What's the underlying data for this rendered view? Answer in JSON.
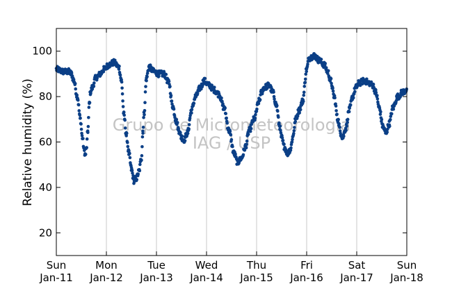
{
  "chart_data": {
    "type": "scatter",
    "title": "",
    "xlabel": "",
    "ylabel": "Relative humidity (%)",
    "ylim": [
      10,
      110
    ],
    "yticks": [
      20,
      40,
      60,
      80,
      100
    ],
    "xlim": [
      "2000-01-11",
      "2000-01-18"
    ],
    "x_tick_labels": [
      {
        "day": "Sun",
        "date": "Jan-11"
      },
      {
        "day": "Mon",
        "date": "Jan-12"
      },
      {
        "day": "Tue",
        "date": "Jan-13"
      },
      {
        "day": "Wed",
        "date": "Jan-14"
      },
      {
        "day": "Thu",
        "date": "Jan-15"
      },
      {
        "day": "Fri",
        "date": "Jan-16"
      },
      {
        "day": "Sat",
        "date": "Jan-17"
      },
      {
        "day": "Sun",
        "date": "Jan-18"
      }
    ],
    "grid": "vertical",
    "marker_color": "#0b3f86",
    "watermark": [
      "Grupo de Micrometeorologia",
      "IAG / USP"
    ],
    "series": [
      {
        "x_unit": "days since Jan-11 00:00",
        "anchors": [
          [
            0.0,
            92
          ],
          [
            0.15,
            91
          ],
          [
            0.25,
            91
          ],
          [
            0.3,
            90
          ],
          [
            0.35,
            87
          ],
          [
            0.42,
            80
          ],
          [
            0.48,
            70
          ],
          [
            0.52,
            62
          ],
          [
            0.56,
            56
          ],
          [
            0.58,
            54
          ],
          [
            0.6,
            57
          ],
          [
            0.63,
            65
          ],
          [
            0.66,
            77
          ],
          [
            0.68,
            82
          ],
          [
            0.72,
            84
          ],
          [
            0.78,
            88
          ],
          [
            0.83,
            89
          ],
          [
            0.88,
            90
          ],
          [
            0.95,
            92
          ],
          [
            1.05,
            94
          ],
          [
            1.15,
            95
          ],
          [
            1.25,
            93
          ],
          [
            1.3,
            87
          ],
          [
            1.35,
            72
          ],
          [
            1.4,
            63
          ],
          [
            1.45,
            55
          ],
          [
            1.5,
            48
          ],
          [
            1.55,
            43
          ],
          [
            1.6,
            44
          ],
          [
            1.65,
            47
          ],
          [
            1.7,
            53
          ],
          [
            1.73,
            65
          ],
          [
            1.75,
            72
          ],
          [
            1.8,
            88
          ],
          [
            1.85,
            93
          ],
          [
            1.95,
            91
          ],
          [
            2.05,
            90
          ],
          [
            2.15,
            90
          ],
          [
            2.25,
            86
          ],
          [
            2.32,
            76
          ],
          [
            2.4,
            69
          ],
          [
            2.45,
            65
          ],
          [
            2.5,
            62
          ],
          [
            2.55,
            61
          ],
          [
            2.62,
            64
          ],
          [
            2.7,
            74
          ],
          [
            2.78,
            80
          ],
          [
            2.88,
            84
          ],
          [
            2.95,
            87
          ],
          [
            3.05,
            85
          ],
          [
            3.15,
            83
          ],
          [
            3.25,
            81
          ],
          [
            3.35,
            75
          ],
          [
            3.45,
            65
          ],
          [
            3.55,
            55
          ],
          [
            3.62,
            51
          ],
          [
            3.7,
            53
          ],
          [
            3.78,
            58
          ],
          [
            3.85,
            65
          ],
          [
            3.95,
            70
          ],
          [
            4.05,
            78
          ],
          [
            4.1,
            82
          ],
          [
            4.15,
            84
          ],
          [
            4.25,
            85
          ],
          [
            4.32,
            82
          ],
          [
            4.4,
            76
          ],
          [
            4.45,
            68
          ],
          [
            4.5,
            62
          ],
          [
            4.55,
            58
          ],
          [
            4.62,
            55
          ],
          [
            4.68,
            57
          ],
          [
            4.72,
            62
          ],
          [
            4.78,
            70
          ],
          [
            4.85,
            74
          ],
          [
            4.92,
            78
          ],
          [
            5.0,
            92
          ],
          [
            5.05,
            97
          ],
          [
            5.15,
            98
          ],
          [
            5.25,
            96
          ],
          [
            5.35,
            94
          ],
          [
            5.42,
            91
          ],
          [
            5.48,
            87
          ],
          [
            5.55,
            80
          ],
          [
            5.62,
            70
          ],
          [
            5.68,
            64
          ],
          [
            5.72,
            62
          ],
          [
            5.78,
            66
          ],
          [
            5.85,
            74
          ],
          [
            5.92,
            80
          ],
          [
            5.98,
            84
          ],
          [
            6.05,
            86
          ],
          [
            6.15,
            87
          ],
          [
            6.25,
            86
          ],
          [
            6.32,
            85
          ],
          [
            6.38,
            82
          ],
          [
            6.45,
            75
          ],
          [
            6.52,
            67
          ],
          [
            6.58,
            64
          ],
          [
            6.65,
            68
          ],
          [
            6.72,
            75
          ],
          [
            6.82,
            80
          ],
          [
            6.92,
            82
          ],
          [
            7.0,
            83
          ]
        ]
      }
    ]
  }
}
